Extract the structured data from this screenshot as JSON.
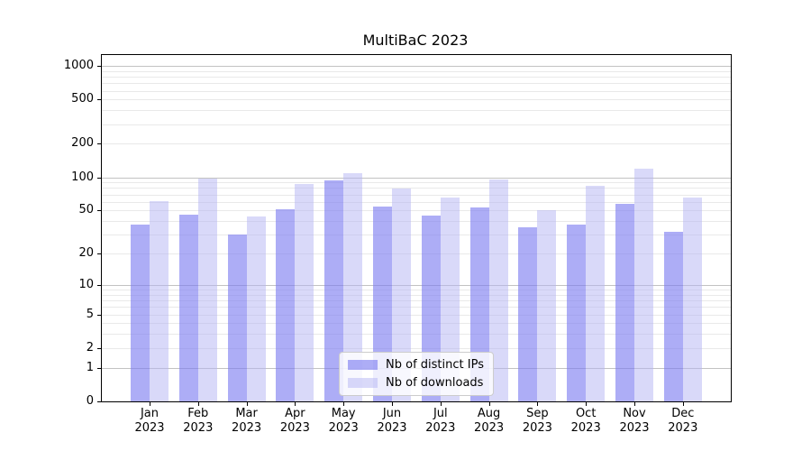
{
  "chart_data": {
    "type": "bar",
    "title": "MultiBaC 2023",
    "xlabel": "",
    "ylabel": "",
    "categories": [
      "Jan",
      "Feb",
      "Mar",
      "Apr",
      "May",
      "Jun",
      "Jul",
      "Aug",
      "Sep",
      "Oct",
      "Nov",
      "Dec"
    ],
    "year_label": "2023",
    "series": [
      {
        "name": "Nb of distinct IPs",
        "color": "#7b7bf0",
        "alpha": 0.62,
        "values": [
          37,
          46,
          30,
          51,
          93,
          54,
          45,
          53,
          35,
          37,
          57,
          32
        ]
      },
      {
        "name": "Nb of downloads",
        "color": "#b4b4f3",
        "alpha": 0.5,
        "values": [
          61,
          98,
          44,
          87,
          108,
          79,
          65,
          96,
          50,
          84,
          120,
          66
        ]
      }
    ],
    "yscale": "log1p",
    "yticks": [
      1000,
      500,
      200,
      100,
      50,
      20,
      10,
      5,
      2,
      1,
      0
    ],
    "ylim": [
      0,
      1250
    ],
    "legend_position": "lower center",
    "grid": {
      "orientation": "horizontal",
      "major_lines": [
        1,
        10,
        100,
        1000
      ],
      "major_color": "#c2c2c2",
      "minor_color": "#e9e9e9"
    }
  }
}
